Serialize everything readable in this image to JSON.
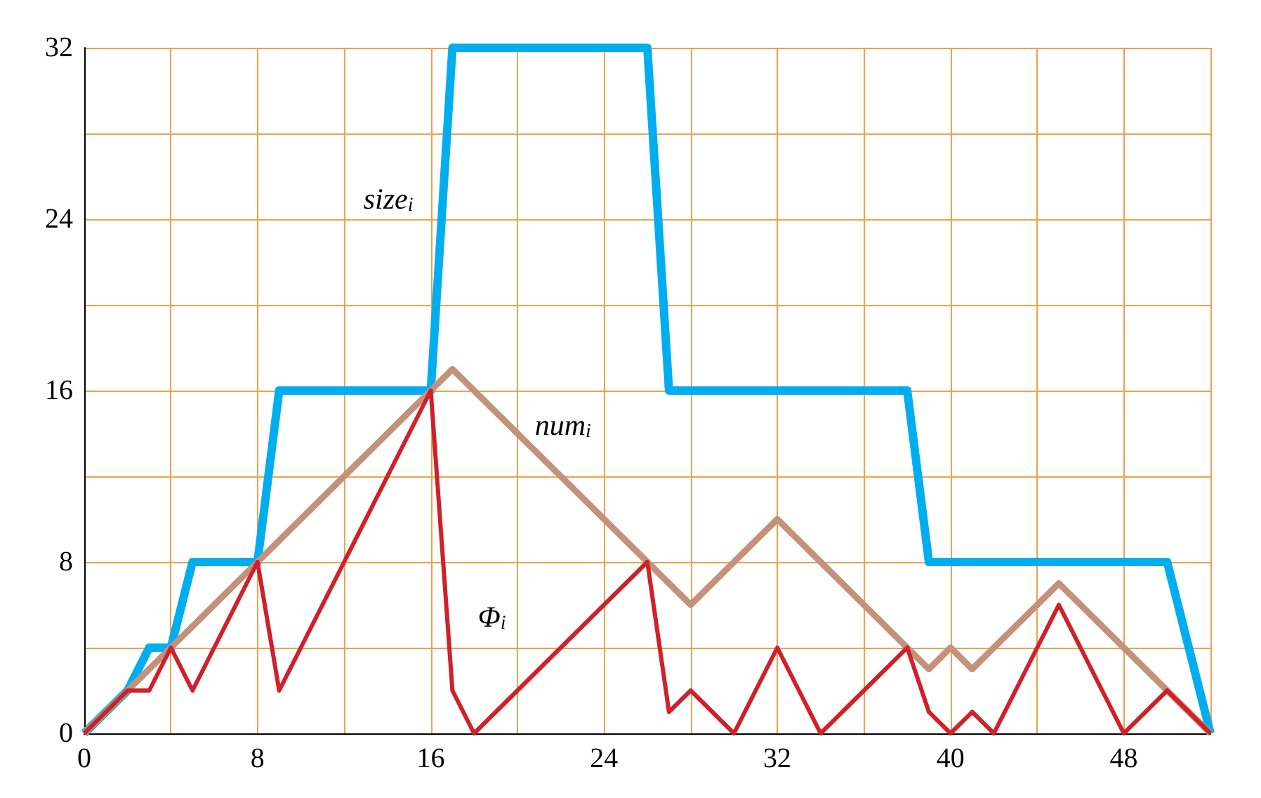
{
  "chart_data": {
    "type": "line",
    "x": [
      0,
      1,
      2,
      3,
      4,
      5,
      6,
      7,
      8,
      9,
      10,
      11,
      12,
      13,
      14,
      15,
      16,
      17,
      18,
      19,
      20,
      21,
      22,
      23,
      24,
      25,
      26,
      27,
      28,
      29,
      30,
      31,
      32,
      33,
      34,
      35,
      36,
      37,
      38,
      39,
      40,
      41,
      42,
      43,
      44,
      45,
      46,
      47,
      48,
      49,
      50,
      51,
      52
    ],
    "series": [
      {
        "color": "#00aeef",
        "values": [
          0,
          1,
          2,
          4,
          4,
          8,
          8,
          8,
          8,
          16,
          16,
          16,
          16,
          16,
          16,
          16,
          16,
          32,
          32,
          32,
          32,
          32,
          32,
          32,
          32,
          32,
          32,
          16,
          16,
          16,
          16,
          16,
          16,
          16,
          16,
          16,
          16,
          16,
          16,
          8,
          8,
          8,
          8,
          8,
          8,
          8,
          8,
          8,
          8,
          8,
          8,
          4,
          0
        ]
      },
      {
        "color": "#c4917a",
        "values": [
          0,
          1,
          2,
          3,
          4,
          5,
          6,
          7,
          8,
          9,
          10,
          11,
          12,
          13,
          14,
          15,
          16,
          17,
          16,
          15,
          14,
          13,
          12,
          11,
          10,
          9,
          8,
          7,
          6,
          7,
          8,
          9,
          10,
          9,
          8,
          7,
          6,
          5,
          4,
          3,
          4,
          3,
          4,
          5,
          6,
          7,
          6,
          5,
          4,
          3,
          2,
          1,
          0
        ]
      },
      {
        "color": "#d0202a",
        "values": [
          0,
          1,
          2,
          2,
          4,
          2,
          4,
          6,
          8,
          2,
          4,
          6,
          8,
          10,
          12,
          14,
          16,
          2,
          0,
          1,
          2,
          3,
          4,
          5,
          6,
          7,
          8,
          1,
          2,
          1,
          0,
          2,
          4,
          2,
          0,
          1,
          2,
          3,
          4,
          1,
          0,
          1,
          0,
          2,
          4,
          6,
          4,
          2,
          0,
          1,
          2,
          1,
          0
        ]
      }
    ],
    "annotations": [
      "size$_{i}$",
      "num$_{i}$",
      "Φ$_{i}$"
    ],
    "xlim": [
      0,
      52
    ],
    "ylim": [
      0,
      32
    ],
    "xticks": [
      0,
      {
        "value": 4,
        "label": null
      },
      8,
      {
        "value": 12,
        "label": null
      },
      16,
      {
        "value": 20,
        "label": null
      },
      24,
      {
        "value": 28,
        "label": null
      },
      32,
      {
        "value": 36,
        "label": null
      },
      40,
      {
        "value": 44,
        "label": null
      },
      48,
      {
        "value": 52,
        "label": null
      }
    ],
    "yticks": [
      0,
      {
        "value": 4,
        "label": null
      },
      8,
      {
        "value": 12,
        "label": null
      },
      16,
      {
        "value": 20,
        "label": null
      },
      24,
      {
        "value": 28,
        "label": null
      },
      32
    ],
    "grid": true,
    "marker": "none",
    "line_style": "solid"
  }
}
